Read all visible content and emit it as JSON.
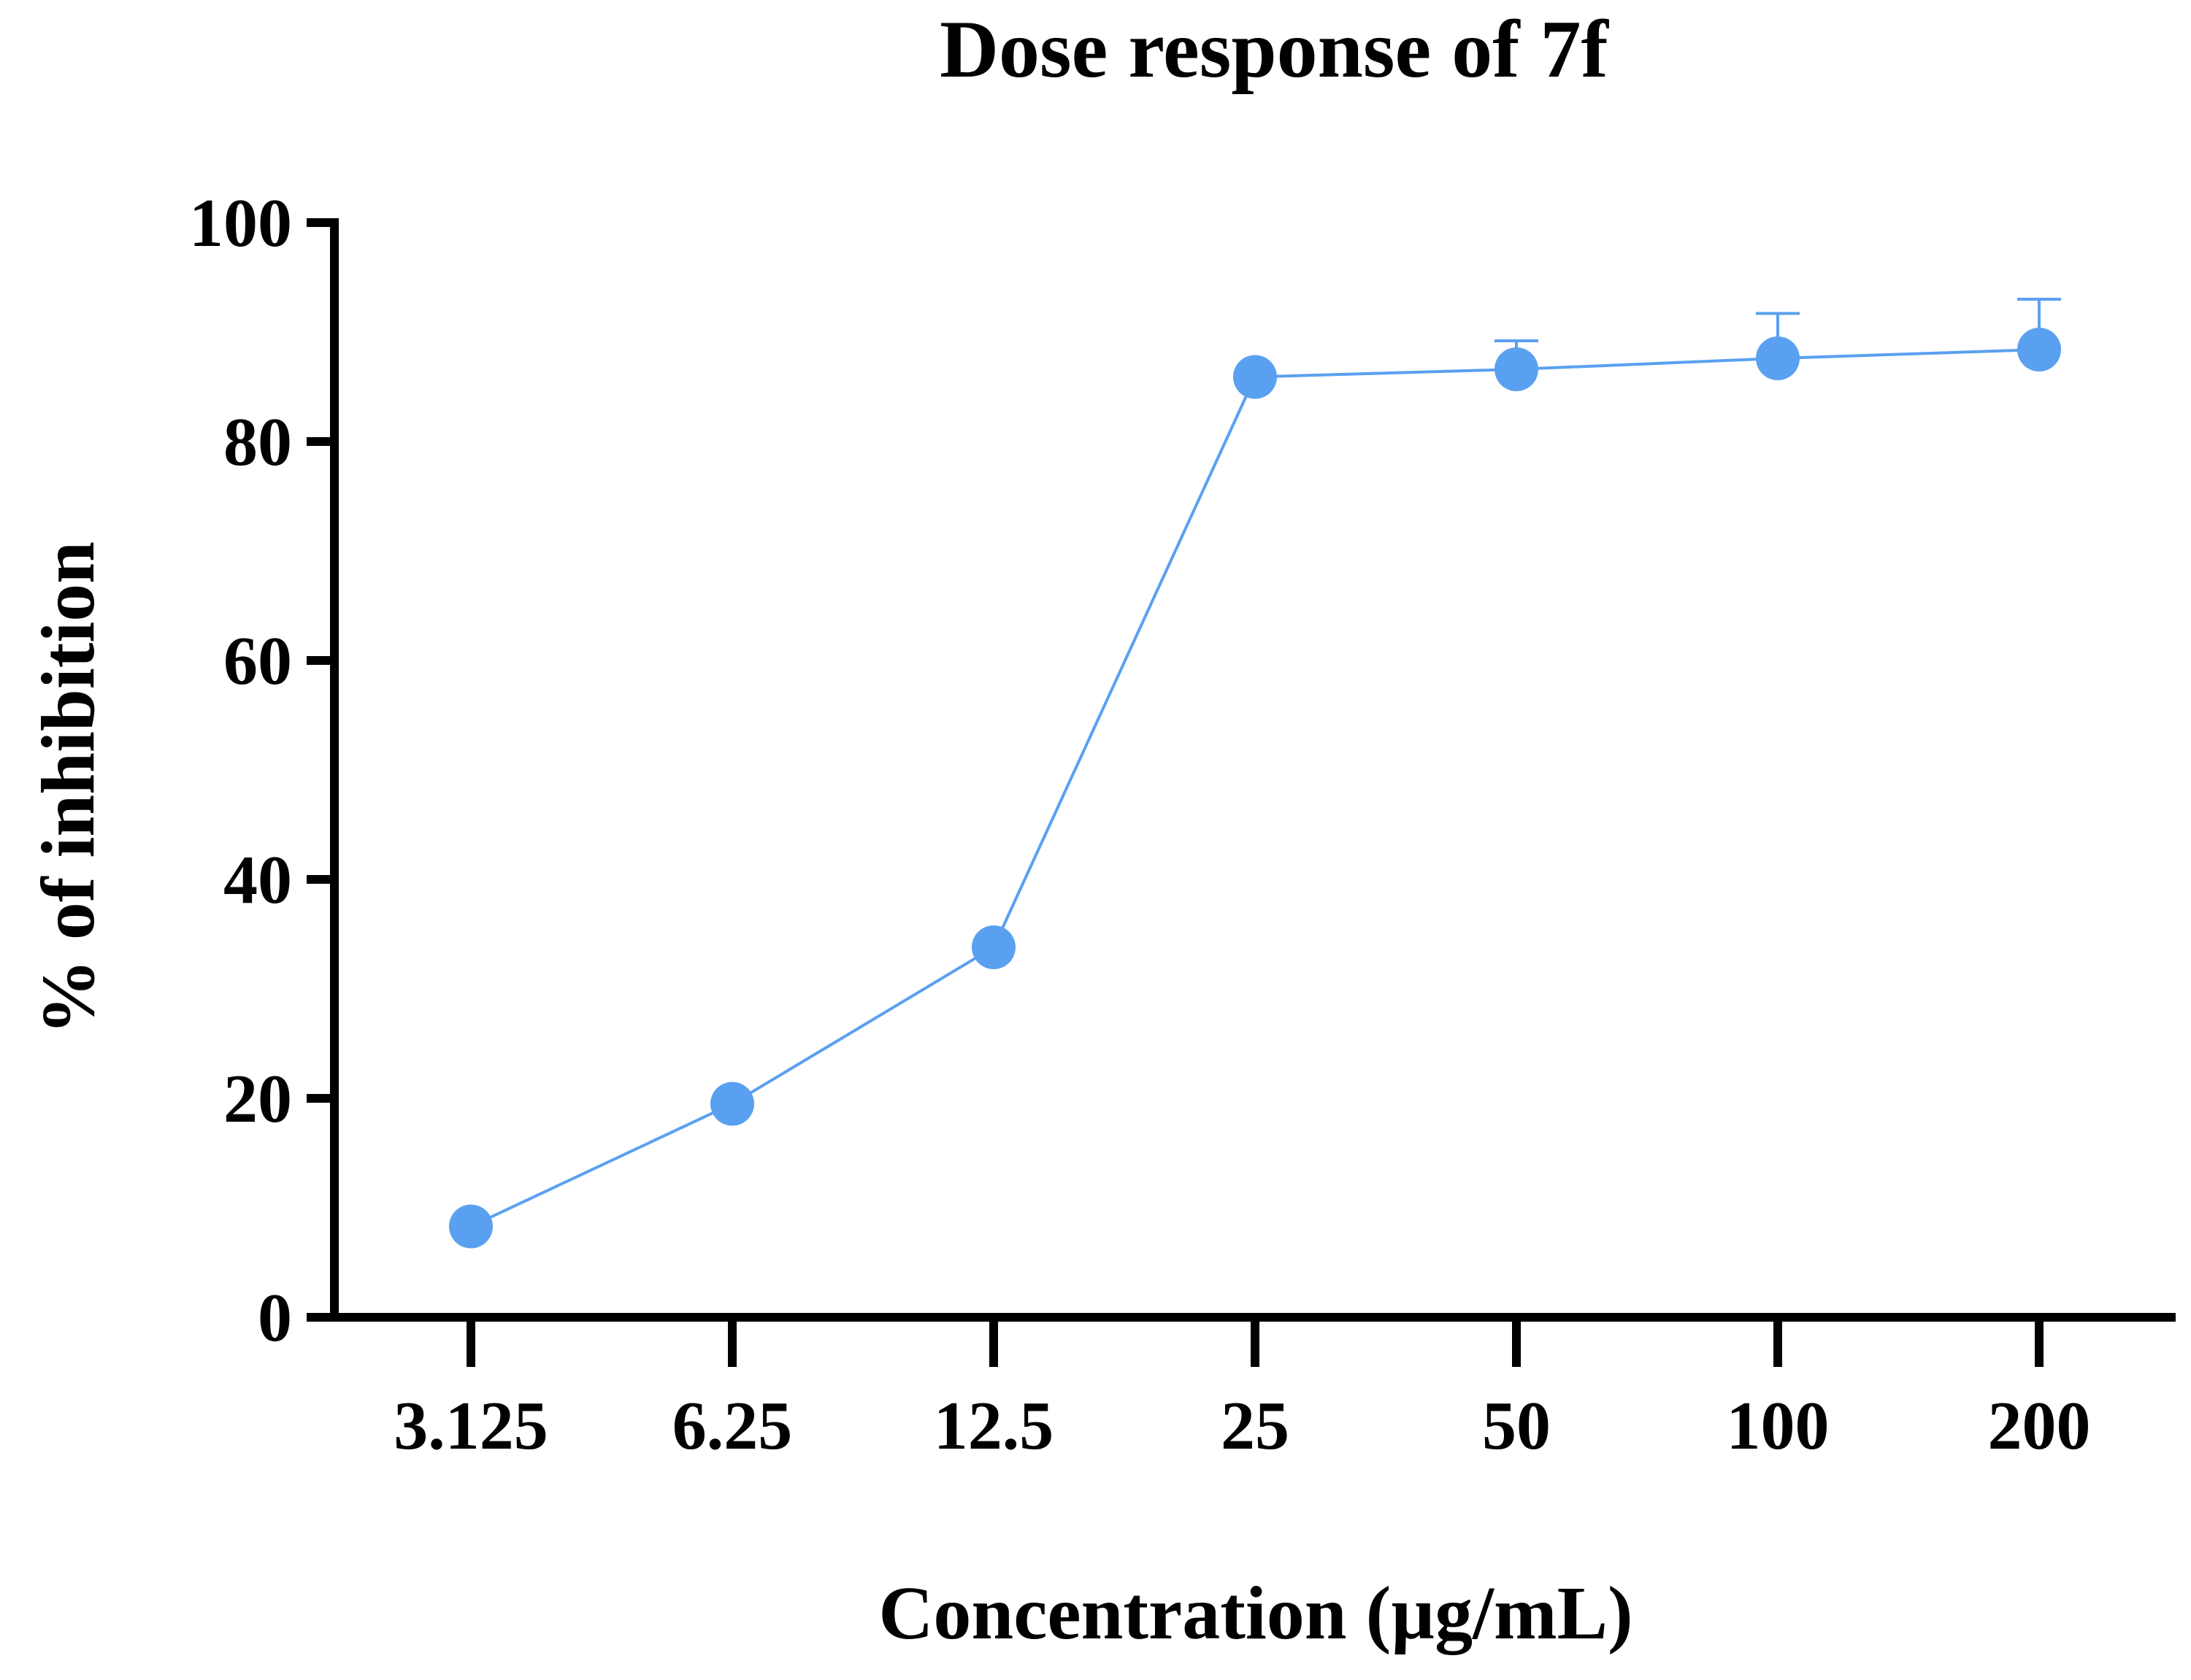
{
  "chart_data": {
    "type": "line",
    "title": "Dose response of 7f",
    "xlabel": "Concentration (µg/mL)",
    "ylabel": "% of inhibition",
    "categories": [
      "3.125",
      "6.25",
      "12.5",
      "25",
      "50",
      "100",
      "200"
    ],
    "ylim": [
      0,
      100
    ],
    "yticks": [
      "0",
      "20",
      "40",
      "60",
      "80",
      "100"
    ],
    "ytick_values": [
      0,
      20,
      40,
      60,
      80,
      100
    ],
    "grid": false,
    "series": [
      {
        "name": "7f",
        "color": "#5aa0f0",
        "values": [
          8.3,
          19.5,
          33.8,
          85.9,
          86.6,
          87.6,
          88.4
        ],
        "error_upper": [
          0,
          0,
          0,
          0,
          2.6,
          4.1,
          4.6
        ]
      }
    ]
  }
}
